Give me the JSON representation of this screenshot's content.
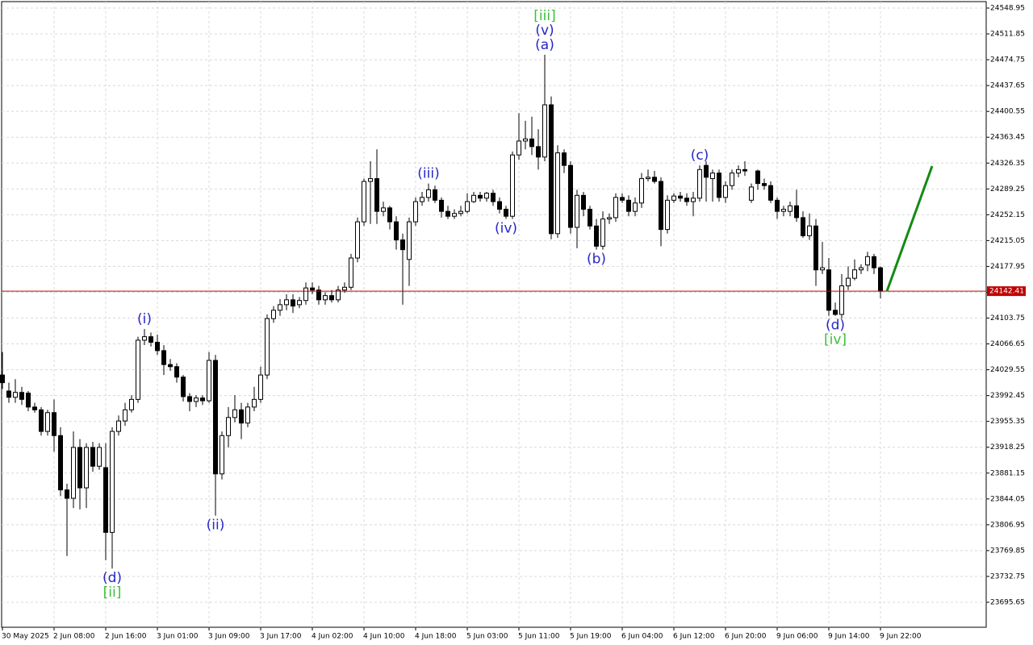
{
  "chart_data": {
    "type": "candlestick",
    "categories": [
      "30 May 2025",
      null,
      null,
      null,
      null,
      null,
      null,
      null,
      "2 Jun 08:00",
      null,
      null,
      null,
      null,
      null,
      null,
      null,
      "2 Jun 16:00",
      null,
      null,
      null,
      null,
      null,
      null,
      null,
      "3 Jun 01:00",
      null,
      null,
      null,
      null,
      null,
      null,
      null,
      "3 Jun 09:00",
      null,
      null,
      null,
      null,
      null,
      null,
      null,
      "3 Jun 17:00",
      null,
      null,
      null,
      null,
      null,
      null,
      null,
      "4 Jun 02:00",
      null,
      null,
      null,
      null,
      null,
      null,
      null,
      "4 Jun 10:00",
      null,
      null,
      null,
      null,
      null,
      null,
      null,
      "4 Jun 18:00",
      null,
      null,
      null,
      null,
      null,
      null,
      null,
      "5 Jun 03:00",
      null,
      null,
      null,
      null,
      null,
      null,
      null,
      "5 Jun 11:00",
      null,
      null,
      null,
      null,
      null,
      null,
      null,
      "5 Jun 19:00",
      null,
      null,
      null,
      null,
      null,
      null,
      null,
      "6 Jun 04:00",
      null,
      null,
      null,
      null,
      null,
      null,
      null,
      "6 Jun 12:00",
      null,
      null,
      null,
      null,
      null,
      null,
      null,
      "6 Jun 20:00",
      null,
      null,
      null,
      null,
      null,
      null,
      null,
      "9 Jun 06:00",
      null,
      null,
      null,
      null,
      null,
      null,
      null,
      "9 Jun 14:00",
      null,
      null,
      null,
      null,
      null,
      null,
      null,
      "9 Jun 22:00"
    ],
    "open": [
      24022,
      23999,
      23990,
      23997,
      23996,
      23976,
      23972,
      23941,
      23968,
      23935,
      23857,
      23845,
      23918,
      23860,
      23918,
      23891,
      23889,
      23796,
      23941,
      23956,
      23972,
      23987,
      24072,
      24077,
      24069,
      24057,
      24037,
      24034,
      24019,
      23991,
      23984,
      23989,
      23985,
      24043,
      23880,
      23935,
      23961,
      23972,
      23953,
      23976,
      23987,
      24022,
      24103,
      24115,
      24123,
      24130,
      24123,
      24129,
      24147,
      24144,
      24130,
      24136,
      24130,
      24144,
      24148,
      24190,
      24242,
      24300,
      24304,
      24257,
      24262,
      24242,
      24216,
      24188,
      24242,
      24271,
      24277,
      24288,
      24273,
      24257,
      24250,
      24254,
      24257,
      24271,
      24280,
      24276,
      24283,
      24271,
      24260,
      24250,
      24338,
      24358,
      24361,
      24350,
      24335,
      24410,
      24225,
      24341,
      24323,
      24234,
      24280,
      24260,
      24236,
      24207,
      24246,
      24248,
      24277,
      24273,
      24257,
      24269,
      24304,
      24306,
      24300,
      24231,
      24273,
      24279,
      24276,
      24271,
      24276,
      24323,
      24304,
      24312,
      24277,
      24294,
      24312,
      24317,
      24273,
      24315,
      24297,
      24294,
      24273,
      24257,
      24257,
      24265,
      24248,
      24222,
      24236,
      24173,
      24173,
      24115,
      24109,
      24150,
      24161,
      24173,
      24180,
      24192,
      24176
    ],
    "high": [
      24055,
      24011,
      24016,
      24005,
      23999,
      23982,
      23976,
      23972,
      23987,
      23947,
      23866,
      23941,
      23930,
      23924,
      23926,
      23924,
      23924,
      23947,
      23964,
      23982,
      23993,
      24077,
      24088,
      24083,
      24080,
      24065,
      24045,
      24039,
      24022,
      23996,
      23993,
      23993,
      24055,
      24051,
      23941,
      23976,
      23993,
      23982,
      23982,
      24005,
      24034,
      24109,
      24121,
      24131,
      24138,
      24138,
      24134,
      24155,
      24155,
      24150,
      24141,
      24144,
      24150,
      24155,
      24196,
      24248,
      24304,
      24329,
      24346,
      24271,
      24265,
      24250,
      24225,
      24248,
      24277,
      24285,
      24297,
      24294,
      24277,
      24265,
      24260,
      24265,
      24283,
      24285,
      24285,
      24285,
      24288,
      24277,
      24265,
      24343,
      24398,
      24387,
      24393,
      24375,
      24482,
      24422,
      24352,
      24346,
      24329,
      24288,
      24285,
      24265,
      24246,
      24257,
      24254,
      24283,
      24283,
      24280,
      24277,
      24312,
      24317,
      24315,
      24306,
      24280,
      24283,
      24285,
      24283,
      24285,
      24323,
      24329,
      24317,
      24317,
      24300,
      24317,
      24323,
      24329,
      24297,
      24317,
      24304,
      24300,
      24277,
      24265,
      24271,
      24288,
      24257,
      24254,
      24246,
      24213,
      24190,
      24126,
      24167,
      24178,
      24188,
      24181,
      24199,
      24196,
      24178
    ],
    "low": [
      24002,
      23982,
      23982,
      23979,
      23970,
      23968,
      23935,
      23935,
      23912,
      23848,
      23762,
      23831,
      23829,
      23831,
      23883,
      23886,
      23756,
      23744,
      23935,
      23949,
      23968,
      23982,
      24065,
      24063,
      24051,
      24022,
      24028,
      24011,
      23984,
      23970,
      23976,
      23979,
      23982,
      23820,
      23872,
      23918,
      23954,
      23930,
      23947,
      23970,
      23982,
      24016,
      24097,
      24107,
      24115,
      24111,
      24118,
      24123,
      24138,
      24123,
      24123,
      24126,
      24126,
      24140,
      24144,
      24184,
      24236,
      24239,
      24239,
      24250,
      24231,
      24202,
      24123,
      24150,
      24236,
      24265,
      24271,
      24269,
      24248,
      24246,
      24246,
      24250,
      24254,
      24269,
      24271,
      24271,
      24265,
      24254,
      24246,
      24246,
      24331,
      24346,
      24338,
      24317,
      24329,
      24217,
      24219,
      24312,
      24225,
      24204,
      24250,
      24231,
      24202,
      24202,
      24239,
      24242,
      24269,
      24250,
      24250,
      24262,
      24300,
      24297,
      24207,
      24225,
      24269,
      24271,
      24265,
      24250,
      24271,
      24271,
      24271,
      24271,
      24269,
      24288,
      24306,
      24308,
      24269,
      24288,
      24288,
      24269,
      24246,
      24250,
      24250,
      24242,
      24219,
      24216,
      24150,
      24167,
      24107,
      24107,
      24103,
      24144,
      24158,
      24167,
      24171,
      24167,
      24132
    ],
    "close": [
      24011,
      23990,
      23997,
      23987,
      23976,
      23972,
      23941,
      23968,
      23935,
      23857,
      23845,
      23918,
      23860,
      23918,
      23891,
      23918,
      23796,
      23941,
      23956,
      23972,
      23987,
      24072,
      24077,
      24069,
      24057,
      24037,
      24034,
      24019,
      23991,
      23984,
      23989,
      23985,
      24043,
      23880,
      23935,
      23961,
      23972,
      23953,
      23976,
      23987,
      24022,
      24103,
      24115,
      24123,
      24130,
      24121,
      24129,
      24147,
      24144,
      24130,
      24136,
      24130,
      24144,
      24148,
      24190,
      24242,
      24300,
      24304,
      24257,
      24262,
      24242,
      24216,
      24202,
      24242,
      24271,
      24277,
      24288,
      24273,
      24257,
      24250,
      24254,
      24257,
      24271,
      24280,
      24276,
      24283,
      24271,
      24260,
      24250,
      24338,
      24358,
      24361,
      24350,
      24335,
      24410,
      24225,
      24341,
      24323,
      24234,
      24280,
      24260,
      24236,
      24207,
      24246,
      24248,
      24277,
      24273,
      24257,
      24269,
      24304,
      24306,
      24300,
      24231,
      24273,
      24279,
      24276,
      24271,
      24276,
      24317,
      24306,
      24312,
      24277,
      24294,
      24312,
      24317,
      24315,
      24292,
      24297,
      24294,
      24273,
      24257,
      24260,
      24265,
      24248,
      24222,
      24236,
      24173,
      24176,
      24115,
      24109,
      24150,
      24161,
      24173,
      24176,
      24192,
      24176,
      24142.41
    ],
    "bull_color": "#ffffff",
    "bear_color": "#000000",
    "ylim": [
      23659.75,
      24558.21
    ],
    "yticks": [
      24548.95,
      24511.85,
      24474.75,
      24437.65,
      24400.55,
      24363.45,
      24326.35,
      24289.25,
      24252.15,
      24215.05,
      24177.95,
      24140.85,
      24103.75,
      24066.65,
      24029.55,
      23992.45,
      23955.35,
      23918.25,
      23881.15,
      23844.05,
      23806.95,
      23769.85,
      23732.75,
      23695.65
    ],
    "grid": true,
    "price_line": {
      "value": 24142.41,
      "color": "#c00000"
    },
    "forecast": {
      "color": "#138a13",
      "x": [
        137,
        144
      ],
      "values": [
        24142.41,
        24322
      ]
    },
    "annotations": [
      {
        "text": "(a)",
        "color": "#2626c8",
        "index": 84,
        "side": "above"
      },
      {
        "text": "(v)",
        "color": "#2626c8",
        "index": 84,
        "side": "above"
      },
      {
        "text": "[iii]",
        "color": "#3cbf3c",
        "index": 84,
        "side": "above"
      },
      {
        "text": "(i)",
        "color": "#2626c8",
        "index": 22,
        "side": "above"
      },
      {
        "text": "(d)",
        "color": "#2626c8",
        "index": 17,
        "side": "below"
      },
      {
        "text": "[ii]",
        "color": "#3cbf3c",
        "index": 17,
        "side": "below"
      },
      {
        "text": "(ii)",
        "color": "#2626c8",
        "index": 33,
        "side": "below"
      },
      {
        "text": "(iii)",
        "color": "#2626c8",
        "index": 66,
        "side": "above"
      },
      {
        "text": "(iv)",
        "color": "#2626c8",
        "index": 78,
        "side": "below"
      },
      {
        "text": "(b)",
        "color": "#2626c8",
        "index": 92,
        "side": "below"
      },
      {
        "text": "(c)",
        "color": "#2626c8",
        "index": 108,
        "side": "above"
      },
      {
        "text": "(d)",
        "color": "#2626c8",
        "index": 129,
        "side": "below"
      },
      {
        "text": "[iv]",
        "color": "#3cbf3c",
        "index": 129,
        "side": "below"
      }
    ]
  }
}
